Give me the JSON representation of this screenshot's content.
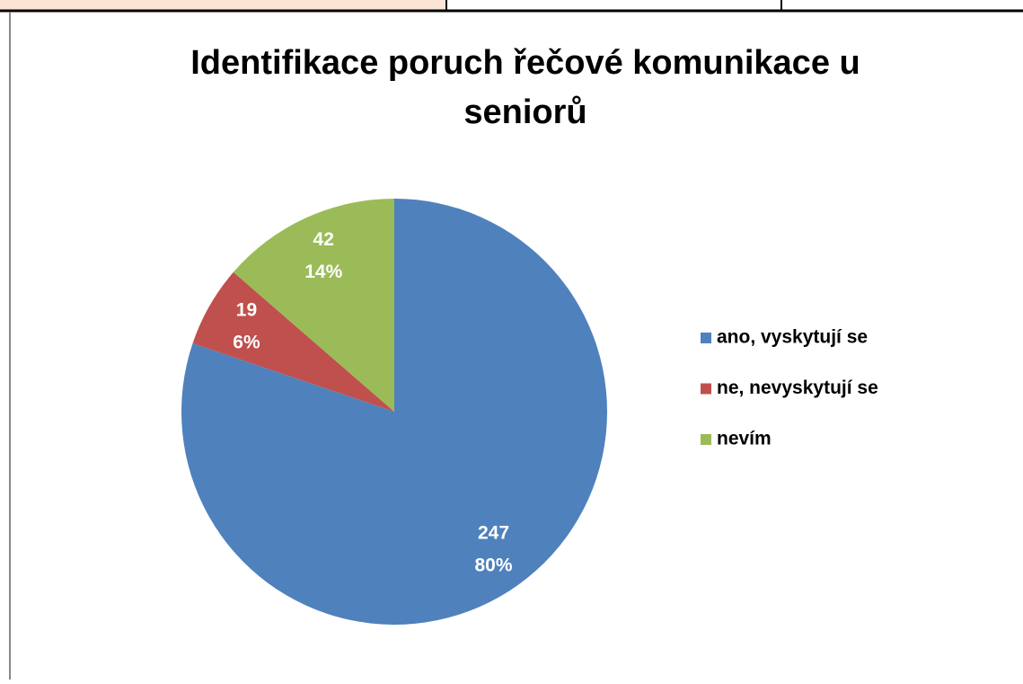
{
  "chart_data": {
    "type": "pie",
    "title_lines": [
      "Identifikace  poruch řečové komunikace u",
      "seniorů"
    ],
    "categories": [
      "ano, vyskytují se",
      "ne, nevyskytují se",
      "nevím"
    ],
    "values": [
      247,
      19,
      42
    ],
    "percent_labels": [
      "80%",
      "6%",
      "14%"
    ],
    "colors": [
      "#4f81bd",
      "#c0504d",
      "#9bbb59"
    ],
    "legend": "right"
  }
}
